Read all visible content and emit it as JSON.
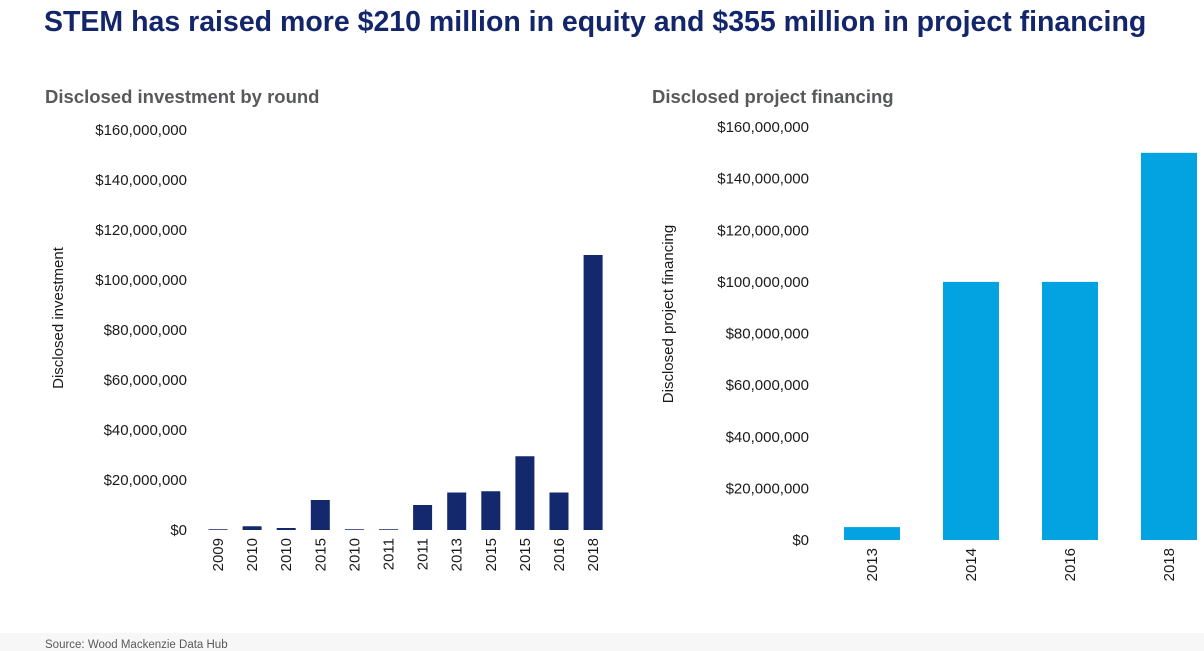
{
  "title": "STEM has raised more $210 million in equity and $355 million in project financing",
  "source": "Source: Wood Mackenzie Data Hub",
  "colors": {
    "title": "#14266b",
    "left_bars": "#14286e",
    "right_bars": "#03a3e2"
  },
  "chart_data": [
    {
      "type": "bar",
      "title": "Disclosed investment by round",
      "ylabel": "Disclosed investment",
      "xlabel": "",
      "categories": [
        "2009",
        "2010",
        "2010",
        "2015",
        "2010",
        "2011",
        "2011",
        "2013",
        "2015",
        "2015",
        "2016",
        "2018"
      ],
      "values": [
        300000,
        1500000,
        800000,
        12000000,
        300000,
        300000,
        10000000,
        15000000,
        15500000,
        29500000,
        15000000,
        110000000
      ],
      "ylim": [
        0,
        160000000
      ],
      "yticks": [
        0,
        20000000,
        40000000,
        60000000,
        80000000,
        100000000,
        120000000,
        140000000,
        160000000
      ],
      "ytick_labels": [
        "$0",
        "$20,000,000",
        "$40,000,000",
        "$60,000,000",
        "$80,000,000",
        "$100,000,000",
        "$120,000,000",
        "$140,000,000",
        "$160,000,000"
      ],
      "grid": false,
      "legend": "none"
    },
    {
      "type": "bar",
      "title": "Disclosed project financing",
      "ylabel": "Disclosed project financing",
      "xlabel": "",
      "categories": [
        "2013",
        "2014",
        "2016",
        "2018"
      ],
      "values": [
        5000000,
        100000000,
        100000000,
        150000000
      ],
      "ylim": [
        0,
        160000000
      ],
      "yticks": [
        0,
        20000000,
        40000000,
        60000000,
        80000000,
        100000000,
        120000000,
        140000000,
        160000000
      ],
      "ytick_labels": [
        "$0",
        "$20,000,000",
        "$40,000,000",
        "$60,000,000",
        "$80,000,000",
        "$100,000,000",
        "$120,000,000",
        "$140,000,000",
        "$160,000,000"
      ],
      "grid": false,
      "legend": "none"
    }
  ]
}
